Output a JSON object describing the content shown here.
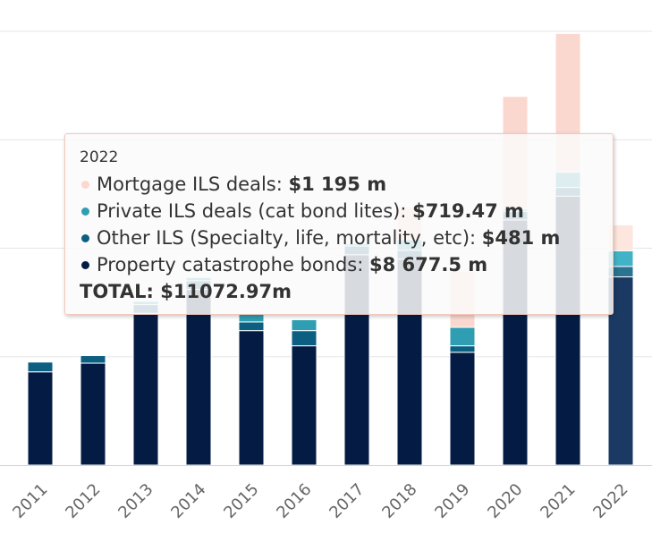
{
  "chart_data": {
    "type": "bar",
    "stacked": true,
    "categories": [
      "2011",
      "2012",
      "2013",
      "2014",
      "2015",
      "2016",
      "2017",
      "2018",
      "2019",
      "2020",
      "2021",
      "2022"
    ],
    "series": [
      {
        "name": "Property catastrophe bonds",
        "color": "#041c44",
        "values": [
          4300,
          4700,
          7000,
          8100,
          6200,
          5500,
          9700,
          9500,
          5200,
          11300,
          12400,
          8677.5
        ]
      },
      {
        "name": "Other ILS (Specialty, life, mortality, etc)",
        "color": "#0d5f82",
        "values": [
          450,
          350,
          400,
          400,
          400,
          700,
          400,
          400,
          300,
          400,
          400,
          481
        ]
      },
      {
        "name": "Private ILS deals (cat bond lites)",
        "color": "#2f9eb2",
        "values": [
          0,
          0,
          150,
          150,
          350,
          500,
          100,
          500,
          850,
          100,
          700,
          719.47
        ]
      },
      {
        "name": "Mortgage ILS deals",
        "color": "#fad8cf",
        "values": [
          0,
          0,
          0,
          0,
          0,
          0,
          0,
          1500,
          2600,
          5200,
          6400,
          1195
        ]
      }
    ],
    "ylim": [
      0,
      20000
    ],
    "grid": true,
    "highlighted_category": "2022"
  },
  "tooltip": {
    "title": "2022",
    "rows": [
      {
        "label": "Mortgage ILS deals: ",
        "value": "$1 195 m",
        "color": "#fad8cf"
      },
      {
        "label": "Private ILS deals (cat bond lites): ",
        "value": "$719.47 m",
        "color": "#2f9eb2"
      },
      {
        "label": "Other ILS (Specialty, life, mortality, etc): ",
        "value": "$481 m",
        "color": "#0d5f82"
      },
      {
        "label": "Property catastrophe bonds: ",
        "value": "$8 677.5 m",
        "color": "#041c44"
      }
    ],
    "total": "TOTAL: $11072.97m"
  }
}
